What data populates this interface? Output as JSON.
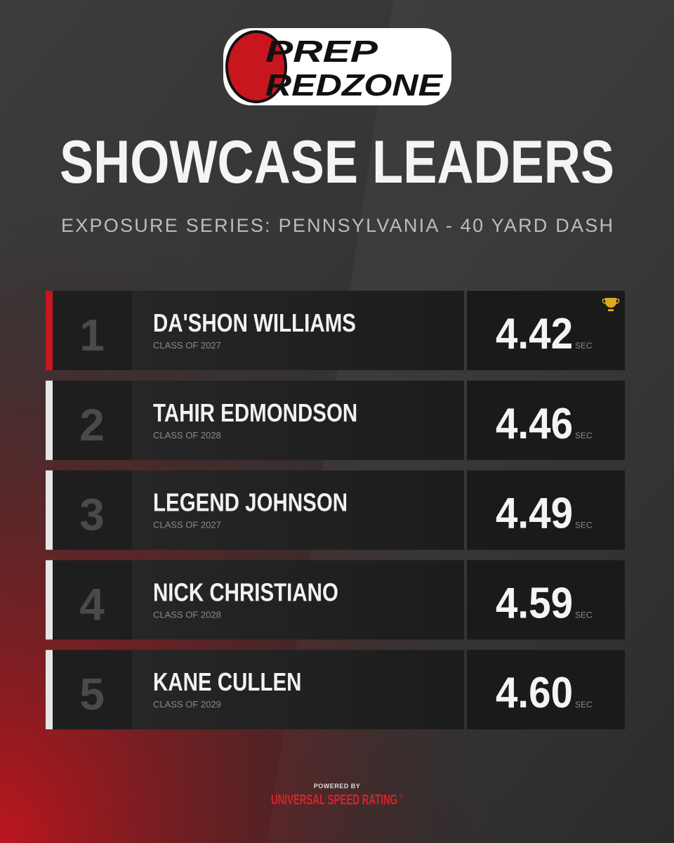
{
  "logo": {
    "line1": "PREP",
    "line2": "REDZONE"
  },
  "title": "SHOWCASE LEADERS",
  "subtitle": "EXPOSURE SERIES: PENNSYLVANIA - 40 YARD DASH",
  "rows": [
    {
      "rank": 1,
      "name": "DA'SHON WILLIAMS",
      "class": "CLASS OF 2027",
      "time": "4.42",
      "unit": "SEC"
    },
    {
      "rank": 2,
      "name": "TAHIR EDMONDSON",
      "class": "CLASS OF 2028",
      "time": "4.46",
      "unit": "SEC"
    },
    {
      "rank": 3,
      "name": "LEGEND JOHNSON",
      "class": "CLASS OF 2027",
      "time": "4.49",
      "unit": "SEC"
    },
    {
      "rank": 4,
      "name": "NICK CHRISTIANO",
      "class": "CLASS OF 2028",
      "time": "4.59",
      "unit": "SEC"
    },
    {
      "rank": 5,
      "name": "KANE CULLEN",
      "class": "CLASS OF 2029",
      "time": "4.60",
      "unit": "SEC"
    }
  ],
  "footer": {
    "powered": "POWERED BY",
    "brand": "UNIVERSAL SPEED RATING",
    "mark": "®"
  }
}
